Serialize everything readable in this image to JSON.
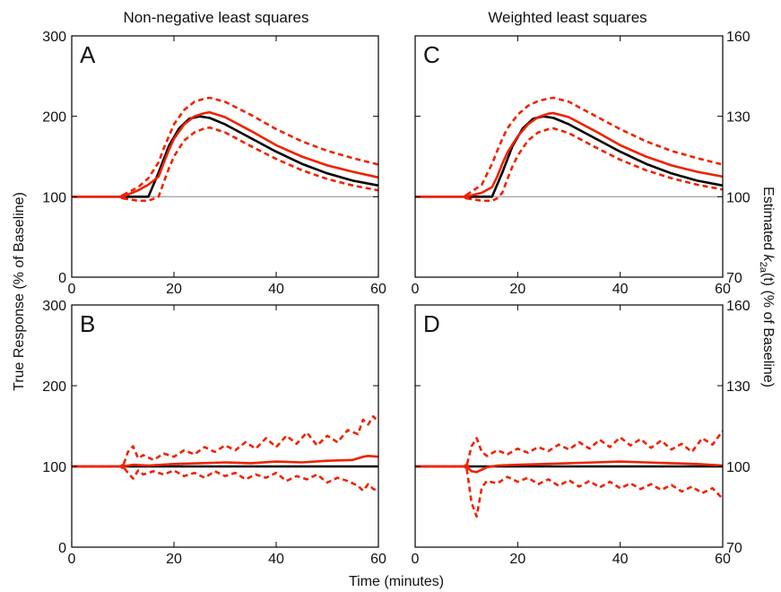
{
  "figure": {
    "left_title": "Non-negative least squares",
    "right_title": "Weighted least squares",
    "xlabel": "Time (minutes)",
    "ylabel_left": "True Response (% of Baseline)",
    "ylabel_right_prefix": "Estimated ",
    "ylabel_right_k": "k",
    "ylabel_right_sub": "2a",
    "ylabel_right_suffix": "(t) (% of Baseline)"
  },
  "chart_data": [
    {
      "panel": "A",
      "type": "line",
      "xlim": [
        0,
        60
      ],
      "ylim": [
        0,
        300
      ],
      "xticks": [
        0,
        20,
        40,
        60
      ],
      "yticks": [
        0,
        100,
        200,
        300
      ],
      "series": [
        {
          "role": "reference",
          "color": "#888888",
          "style": "solid",
          "x": [
            0,
            60
          ],
          "y": [
            100,
            100
          ]
        },
        {
          "role": "true",
          "color": "#000000",
          "style": "solid",
          "x": [
            0,
            10,
            15,
            17,
            19,
            21,
            23,
            25,
            27,
            30,
            35,
            40,
            45,
            50,
            55,
            60
          ],
          "y": [
            100,
            100,
            100,
            130,
            163,
            185,
            197,
            200,
            198,
            190,
            173,
            156,
            141,
            129,
            120,
            114
          ]
        },
        {
          "role": "estimate mean",
          "color": "#ee2200",
          "style": "solid",
          "x": [
            0,
            10,
            13,
            15,
            17,
            18,
            19,
            20,
            22,
            24,
            26,
            27,
            30,
            35,
            40,
            45,
            50,
            55,
            60
          ],
          "y": [
            100,
            100,
            108,
            115,
            125,
            142,
            158,
            172,
            190,
            200,
            204,
            205,
            199,
            182,
            164,
            150,
            139,
            131,
            124
          ]
        },
        {
          "role": "estimate upper",
          "color": "#ee2200",
          "style": "dashed",
          "x": [
            10,
            13,
            15,
            17,
            18,
            19,
            20,
            22,
            24,
            26,
            27,
            30,
            35,
            40,
            45,
            50,
            55,
            60
          ],
          "y": [
            102,
            112,
            123,
            143,
            160,
            175,
            190,
            208,
            218,
            222,
            223,
            218,
            202,
            184,
            169,
            157,
            148,
            140
          ]
        },
        {
          "role": "estimate lower",
          "color": "#ee2200",
          "style": "dashed",
          "x": [
            10,
            13,
            15,
            17,
            18,
            19,
            20,
            22,
            24,
            26,
            27,
            30,
            35,
            40,
            45,
            50,
            55,
            60
          ],
          "y": [
            98,
            95,
            95,
            100,
            118,
            135,
            150,
            170,
            180,
            185,
            186,
            180,
            163,
            147,
            133,
            122,
            114,
            108
          ]
        }
      ]
    },
    {
      "panel": "B",
      "type": "line",
      "xlim": [
        0,
        60
      ],
      "ylim": [
        0,
        300
      ],
      "xticks": [
        0,
        20,
        40,
        60
      ],
      "yticks": [
        0,
        100,
        200,
        300
      ],
      "series": [
        {
          "role": "true",
          "color": "#000000",
          "style": "solid",
          "x": [
            0,
            60
          ],
          "y": [
            100,
            100
          ]
        },
        {
          "role": "estimate mean",
          "color": "#ee2200",
          "style": "solid",
          "x": [
            0,
            10,
            12,
            15,
            20,
            25,
            30,
            35,
            40,
            45,
            50,
            55,
            57,
            58,
            60
          ],
          "y": [
            100,
            100,
            102,
            101,
            103,
            104,
            105,
            104,
            106,
            105,
            107,
            108,
            112,
            113,
            112
          ]
        },
        {
          "role": "estimate upper",
          "color": "#ee2200",
          "style": "dashed",
          "x": [
            0,
            10,
            11,
            12,
            13,
            14,
            16,
            18,
            20,
            22,
            24,
            26,
            28,
            30,
            32,
            34,
            36,
            38,
            40,
            42,
            44,
            46,
            48,
            50,
            52,
            54,
            56,
            57,
            58,
            59,
            60
          ],
          "y": [
            100,
            100,
            118,
            125,
            110,
            114,
            108,
            116,
            112,
            120,
            115,
            124,
            118,
            126,
            120,
            130,
            122,
            135,
            124,
            138,
            128,
            142,
            126,
            138,
            130,
            145,
            140,
            158,
            152,
            162,
            155
          ]
        },
        {
          "role": "estimate lower",
          "color": "#ee2200",
          "style": "dashed",
          "x": [
            0,
            10,
            11,
            12,
            13,
            14,
            16,
            18,
            20,
            22,
            24,
            26,
            28,
            30,
            32,
            34,
            36,
            38,
            40,
            42,
            44,
            46,
            48,
            50,
            52,
            54,
            56,
            57,
            58,
            59,
            60
          ],
          "y": [
            100,
            100,
            92,
            85,
            95,
            90,
            94,
            90,
            95,
            88,
            92,
            86,
            94,
            88,
            92,
            84,
            90,
            86,
            92,
            82,
            88,
            84,
            90,
            80,
            86,
            82,
            76,
            70,
            78,
            72,
            70
          ]
        }
      ]
    },
    {
      "panel": "C",
      "type": "line",
      "xlim": [
        0,
        60
      ],
      "ylim": [
        70,
        160
      ],
      "xticks": [
        0,
        20,
        40,
        60
      ],
      "yticks": [
        70,
        100,
        130,
        160
      ],
      "y_axis_side": "right",
      "series": [
        {
          "role": "reference",
          "color": "#888888",
          "style": "solid",
          "x": [
            0,
            60
          ],
          "y": [
            100,
            100
          ]
        },
        {
          "role": "true",
          "color": "#000000",
          "style": "solid",
          "x": [
            0,
            10,
            15,
            17,
            19,
            21,
            23,
            25,
            27,
            30,
            35,
            40,
            45,
            50,
            55,
            60
          ],
          "y": [
            100,
            100,
            100,
            109,
            118.9,
            125.5,
            129.1,
            130,
            129.4,
            127,
            121.9,
            116.8,
            112.3,
            108.7,
            106,
            104.2
          ]
        },
        {
          "role": "estimate mean",
          "color": "#ee2200",
          "style": "solid",
          "x": [
            0,
            10,
            13,
            15,
            16,
            17,
            18,
            20,
            22,
            24,
            26,
            27,
            30,
            35,
            40,
            45,
            50,
            55,
            60
          ],
          "y": [
            100,
            100,
            101.5,
            103.6,
            107.5,
            112.3,
            116.5,
            122.5,
            127,
            129.7,
            131,
            131.2,
            129.7,
            124.6,
            119.2,
            115,
            111.7,
            109.3,
            107.5
          ]
        },
        {
          "role": "estimate upper",
          "color": "#ee2200",
          "style": "dashed",
          "x": [
            10,
            13,
            14,
            15,
            16,
            17,
            18,
            20,
            22,
            24,
            26,
            27,
            30,
            35,
            40,
            45,
            50,
            55,
            60
          ],
          "y": [
            100.6,
            104.5,
            108.4,
            112.3,
            117.1,
            121.6,
            125.5,
            130.6,
            133.9,
            135.7,
            136.6,
            136.9,
            135.4,
            130.3,
            125.2,
            120.7,
            117.1,
            114.4,
            112
          ]
        },
        {
          "role": "estimate lower",
          "color": "#ee2200",
          "style": "dashed",
          "x": [
            10,
            13,
            15,
            16,
            17,
            18,
            19,
            20,
            22,
            24,
            26,
            27,
            30,
            35,
            40,
            45,
            50,
            55,
            60
          ],
          "y": [
            99.4,
            98.5,
            98.5,
            99.4,
            101.5,
            106.6,
            111.4,
            115.3,
            121,
            124,
            125.2,
            125.5,
            123.7,
            118.6,
            113.8,
            109.9,
            106.9,
            104.5,
            102.7
          ]
        }
      ]
    },
    {
      "panel": "D",
      "type": "line",
      "xlim": [
        0,
        60
      ],
      "ylim": [
        70,
        160
      ],
      "xticks": [
        0,
        20,
        40,
        60
      ],
      "yticks": [
        70,
        100,
        130,
        160
      ],
      "y_axis_side": "right",
      "series": [
        {
          "role": "true",
          "color": "#000000",
          "style": "solid",
          "x": [
            0,
            60
          ],
          "y": [
            100,
            100
          ]
        },
        {
          "role": "estimate mean",
          "color": "#ee2200",
          "style": "solid",
          "x": [
            0,
            10,
            11,
            12,
            14,
            16,
            20,
            25,
            30,
            35,
            40,
            45,
            50,
            55,
            60
          ],
          "y": [
            100,
            100,
            98.2,
            97.9,
            99.7,
            100.3,
            100.6,
            100.9,
            101.2,
            101.5,
            101.8,
            101.5,
            101.2,
            100.9,
            100.3
          ]
        },
        {
          "role": "estimate upper",
          "color": "#ee2200",
          "style": "dashed",
          "x": [
            0,
            10,
            11,
            12,
            13,
            14,
            16,
            18,
            20,
            22,
            24,
            26,
            28,
            30,
            32,
            34,
            36,
            38,
            40,
            42,
            44,
            46,
            48,
            50,
            52,
            54,
            56,
            58,
            60
          ],
          "y": [
            100,
            100,
            107.5,
            110.5,
            105.4,
            103.9,
            106,
            104.5,
            106.6,
            105.1,
            107.2,
            105.7,
            108.1,
            106.3,
            109,
            106.6,
            109.9,
            107.2,
            110.8,
            107.8,
            110.2,
            106.9,
            109.6,
            106.3,
            108.4,
            105.4,
            110.5,
            108.1,
            113.2
          ]
        },
        {
          "role": "estimate lower",
          "color": "#ee2200",
          "style": "dashed",
          "x": [
            0,
            10,
            11,
            12,
            13,
            14,
            16,
            18,
            20,
            22,
            24,
            26,
            28,
            30,
            32,
            34,
            36,
            38,
            40,
            42,
            44,
            46,
            48,
            50,
            52,
            54,
            56,
            58,
            60
          ],
          "y": [
            100,
            100,
            86.5,
            81.4,
            92.2,
            94.6,
            93.7,
            96.1,
            94.3,
            95.8,
            93.4,
            95.2,
            92.8,
            94.9,
            92.5,
            94.6,
            92.2,
            94.3,
            91.9,
            93.7,
            91.6,
            93.4,
            91.3,
            93.1,
            90.7,
            92.5,
            90.1,
            91.9,
            88
          ]
        }
      ]
    }
  ]
}
